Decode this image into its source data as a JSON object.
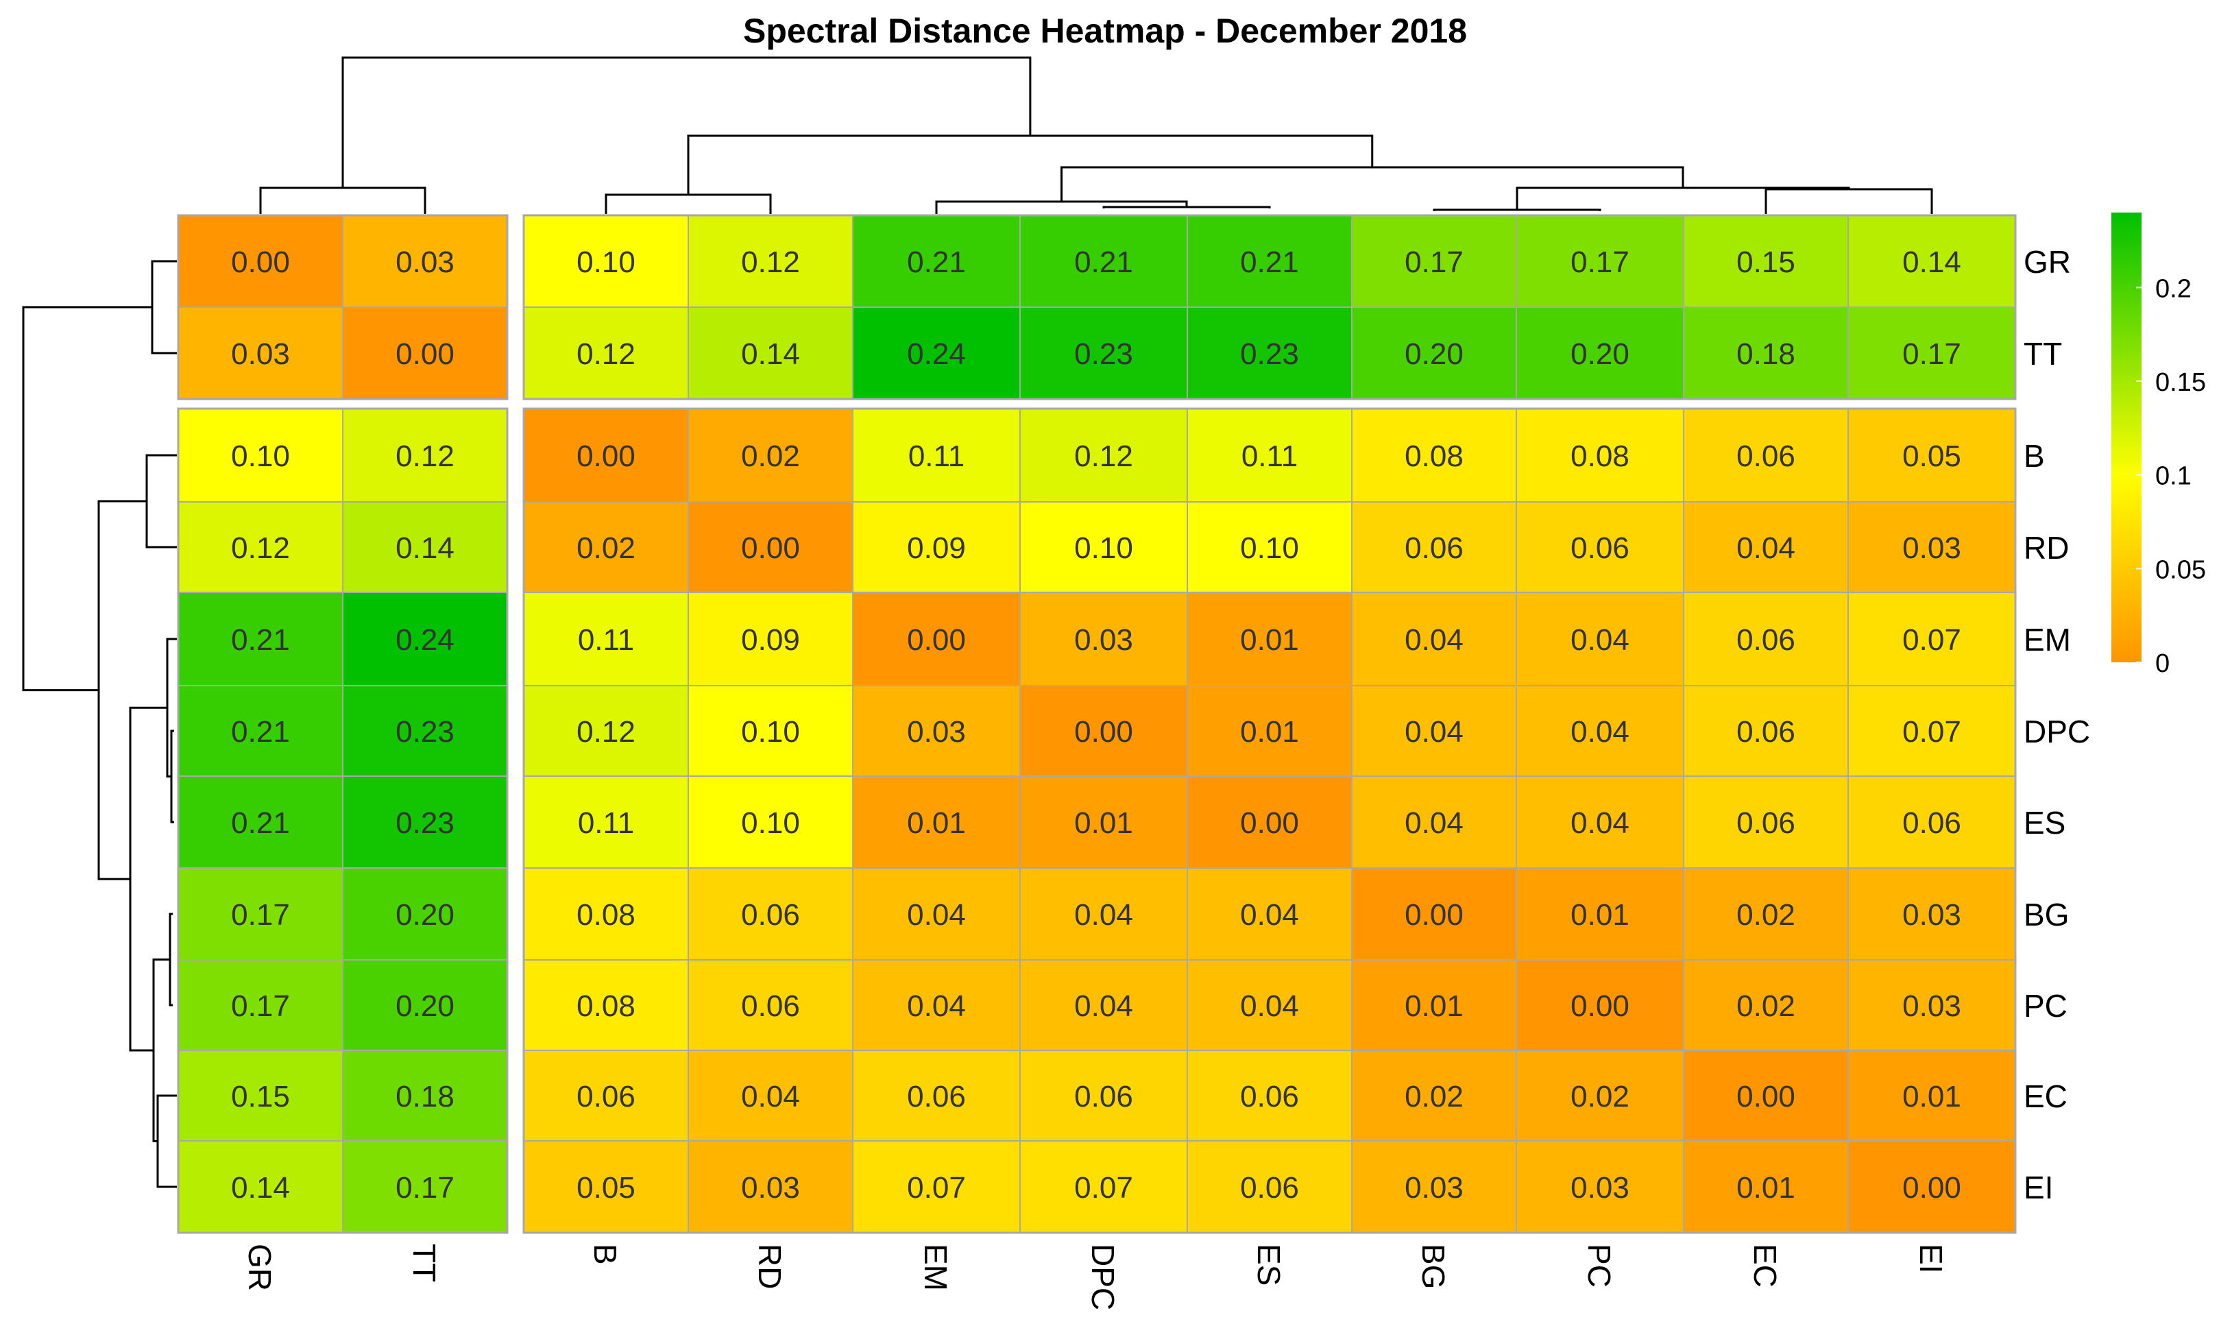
{
  "chart_data": {
    "type": "heatmap",
    "title": "Spectral Distance Heatmap - December 2018",
    "columns": [
      "GR",
      "TT",
      "B",
      "RD",
      "EM",
      "DPC",
      "ES",
      "BG",
      "PC",
      "EC",
      "EI"
    ],
    "rows": [
      "GR",
      "TT",
      "B",
      "RD",
      "EM",
      "DPC",
      "ES",
      "BG",
      "PC",
      "EC",
      "EI"
    ],
    "values": [
      [
        "0.00",
        "0.03",
        "0.10",
        "0.12",
        "0.21",
        "0.21",
        "0.21",
        "0.17",
        "0.17",
        "0.15",
        "0.14"
      ],
      [
        "0.03",
        "0.00",
        "0.12",
        "0.14",
        "0.24",
        "0.23",
        "0.23",
        "0.20",
        "0.20",
        "0.18",
        "0.17"
      ],
      [
        "0.10",
        "0.12",
        "0.00",
        "0.02",
        "0.11",
        "0.12",
        "0.11",
        "0.08",
        "0.08",
        "0.06",
        "0.05"
      ],
      [
        "0.12",
        "0.14",
        "0.02",
        "0.00",
        "0.09",
        "0.10",
        "0.10",
        "0.06",
        "0.06",
        "0.04",
        "0.03"
      ],
      [
        "0.21",
        "0.24",
        "0.11",
        "0.09",
        "0.00",
        "0.03",
        "0.01",
        "0.04",
        "0.04",
        "0.06",
        "0.07"
      ],
      [
        "0.21",
        "0.23",
        "0.12",
        "0.10",
        "0.03",
        "0.00",
        "0.01",
        "0.04",
        "0.04",
        "0.06",
        "0.07"
      ],
      [
        "0.21",
        "0.23",
        "0.11",
        "0.10",
        "0.01",
        "0.01",
        "0.00",
        "0.04",
        "0.04",
        "0.06",
        "0.06"
      ],
      [
        "0.17",
        "0.20",
        "0.08",
        "0.06",
        "0.04",
        "0.04",
        "0.04",
        "0.00",
        "0.01",
        "0.02",
        "0.03"
      ],
      [
        "0.17",
        "0.20",
        "0.08",
        "0.06",
        "0.04",
        "0.04",
        "0.04",
        "0.01",
        "0.00",
        "0.02",
        "0.03"
      ],
      [
        "0.15",
        "0.18",
        "0.06",
        "0.04",
        "0.06",
        "0.06",
        "0.06",
        "0.02",
        "0.02",
        "0.00",
        "0.01"
      ],
      [
        "0.14",
        "0.17",
        "0.05",
        "0.03",
        "0.07",
        "0.07",
        "0.06",
        "0.03",
        "0.03",
        "0.01",
        "0.00"
      ]
    ],
    "row_split_after": 2,
    "col_split_after": 2,
    "color_scale": {
      "min": 0,
      "max": 0.24,
      "stops": [
        {
          "value": 0,
          "color": "#FF9500"
        },
        {
          "value": 0.1,
          "color": "#FFFF00"
        },
        {
          "value": 0.24,
          "color": "#00C000"
        }
      ]
    },
    "legend": {
      "ticks": [
        {
          "value": 0,
          "label": "0"
        },
        {
          "value": 0.05,
          "label": "0.05"
        },
        {
          "value": 0.1,
          "label": "0.1"
        },
        {
          "value": 0.15,
          "label": "0.15"
        },
        {
          "value": 0.2,
          "label": "0.2"
        }
      ],
      "position": "right"
    }
  }
}
